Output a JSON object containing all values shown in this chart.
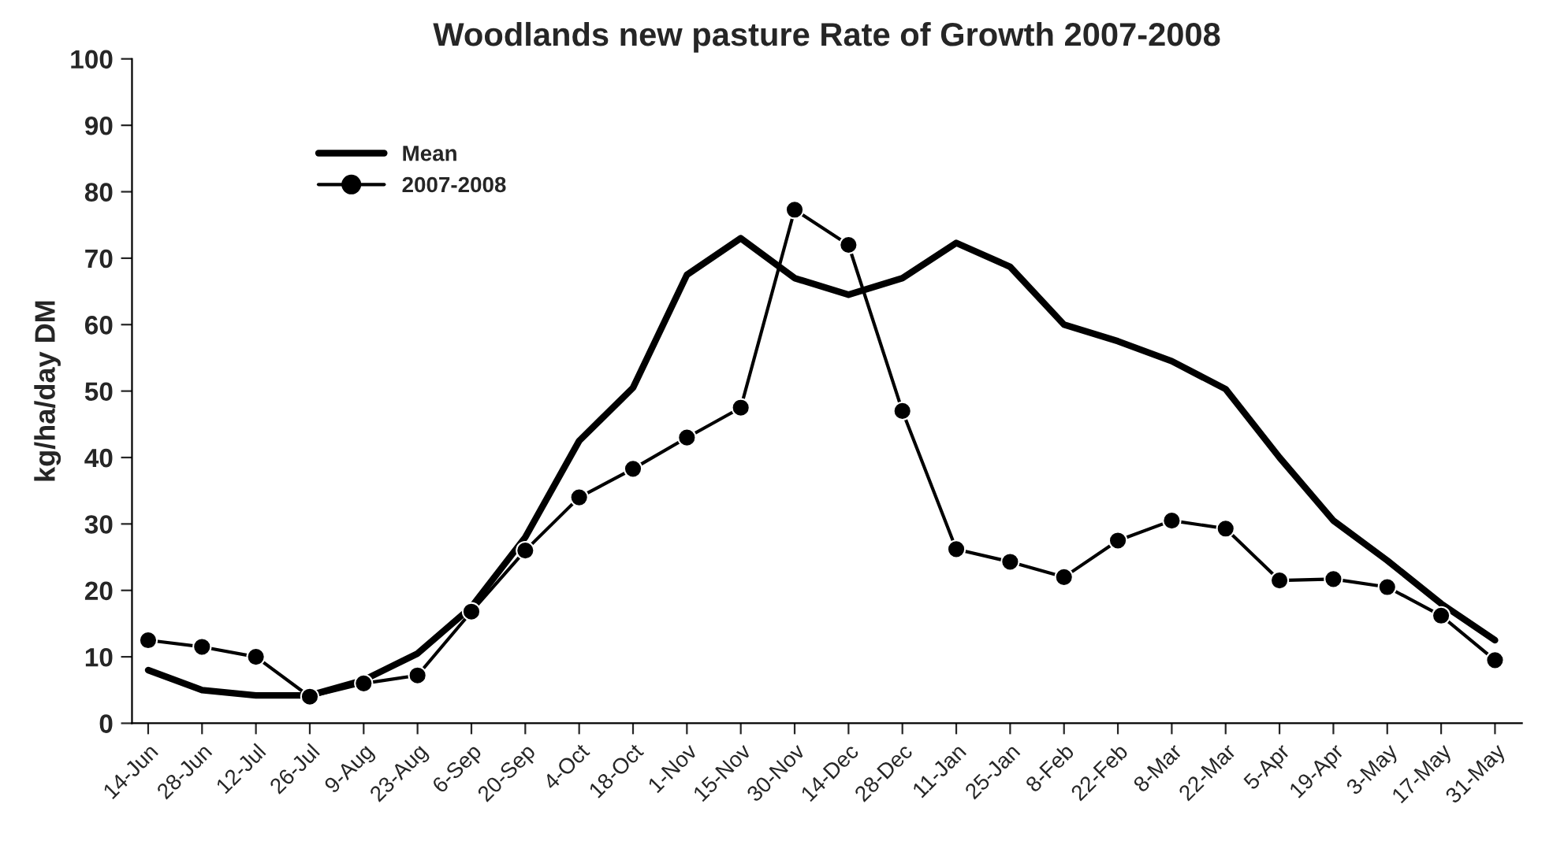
{
  "chart_data": {
    "type": "line",
    "title": "Woodlands new pasture Rate of Growth 2007-2008",
    "ylabel": "kg/ha/day DM",
    "categories": [
      "14-Jun",
      "28-Jun",
      "12-Jul",
      "26-Jul",
      "9-Aug",
      "23-Aug",
      "6-Sep",
      "20-Sep",
      "4-Oct",
      "18-Oct",
      "1-Nov",
      "15-Nov",
      "30-Nov",
      "14-Dec",
      "28-Dec",
      "11-Jan",
      "25-Jan",
      "8-Feb",
      "22-Feb",
      "8-Mar",
      "22-Mar",
      "5-Apr",
      "19-Apr",
      "3-May",
      "17-May",
      "31-May"
    ],
    "series": [
      {
        "name": "Mean",
        "color": "#000000",
        "marker": "none",
        "values": [
          8,
          5,
          4.2,
          4.2,
          6.5,
          10.5,
          17.5,
          28,
          42.5,
          50.5,
          67.5,
          73,
          67,
          64.5,
          67,
          72.3,
          68.7,
          60,
          57.5,
          54.5,
          50.3,
          40,
          30.5,
          24.5,
          18,
          12.5
        ]
      },
      {
        "name": "2007-2008",
        "color": "#000000",
        "marker": "circle",
        "values": [
          12.5,
          11.5,
          10,
          4,
          6,
          7.2,
          16.8,
          26,
          34,
          38.3,
          43,
          47.5,
          77.3,
          72,
          47,
          26.2,
          24.3,
          22,
          27.5,
          30.5,
          29.3,
          21.5,
          21.7,
          20.5,
          16.2,
          9.5
        ]
      }
    ],
    "ylim": [
      0,
      100
    ],
    "yticks": [
      0,
      10,
      20,
      30,
      40,
      50,
      60,
      70,
      80,
      90,
      100
    ],
    "grid": false,
    "legend": "top left"
  }
}
